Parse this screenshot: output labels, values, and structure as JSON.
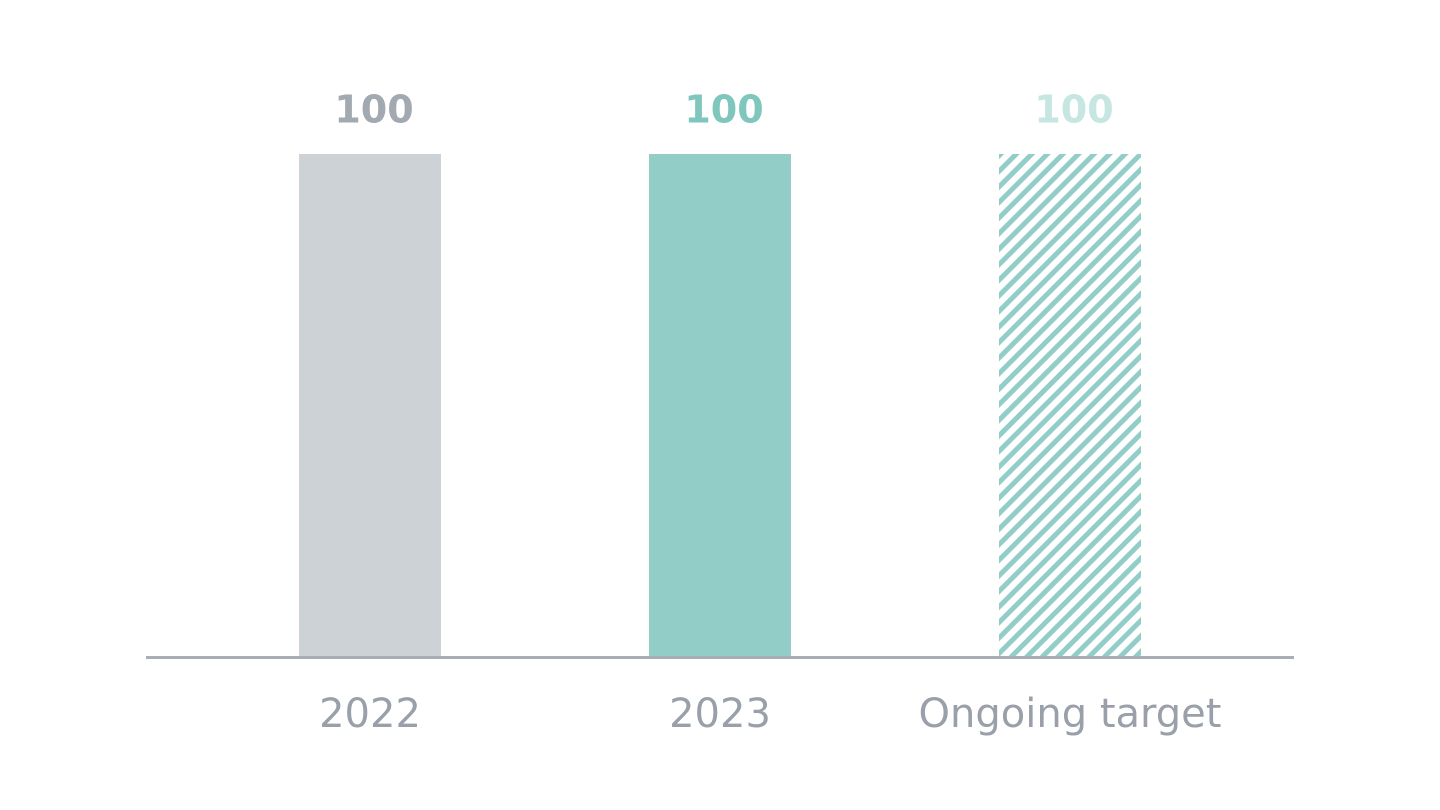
{
  "chart_data": {
    "type": "bar",
    "categories": [
      "2022",
      "2023",
      "Ongoing target"
    ],
    "values": [
      100,
      100,
      100
    ],
    "colors": [
      "#cdd2d6",
      "#92cdc7",
      "#92cdc7"
    ],
    "hatch": [
      false,
      false,
      true
    ],
    "label_colors": [
      "#a3a9b0",
      "#7fc6bd",
      "#c5e6e1"
    ],
    "ylim": [
      0,
      100
    ]
  }
}
